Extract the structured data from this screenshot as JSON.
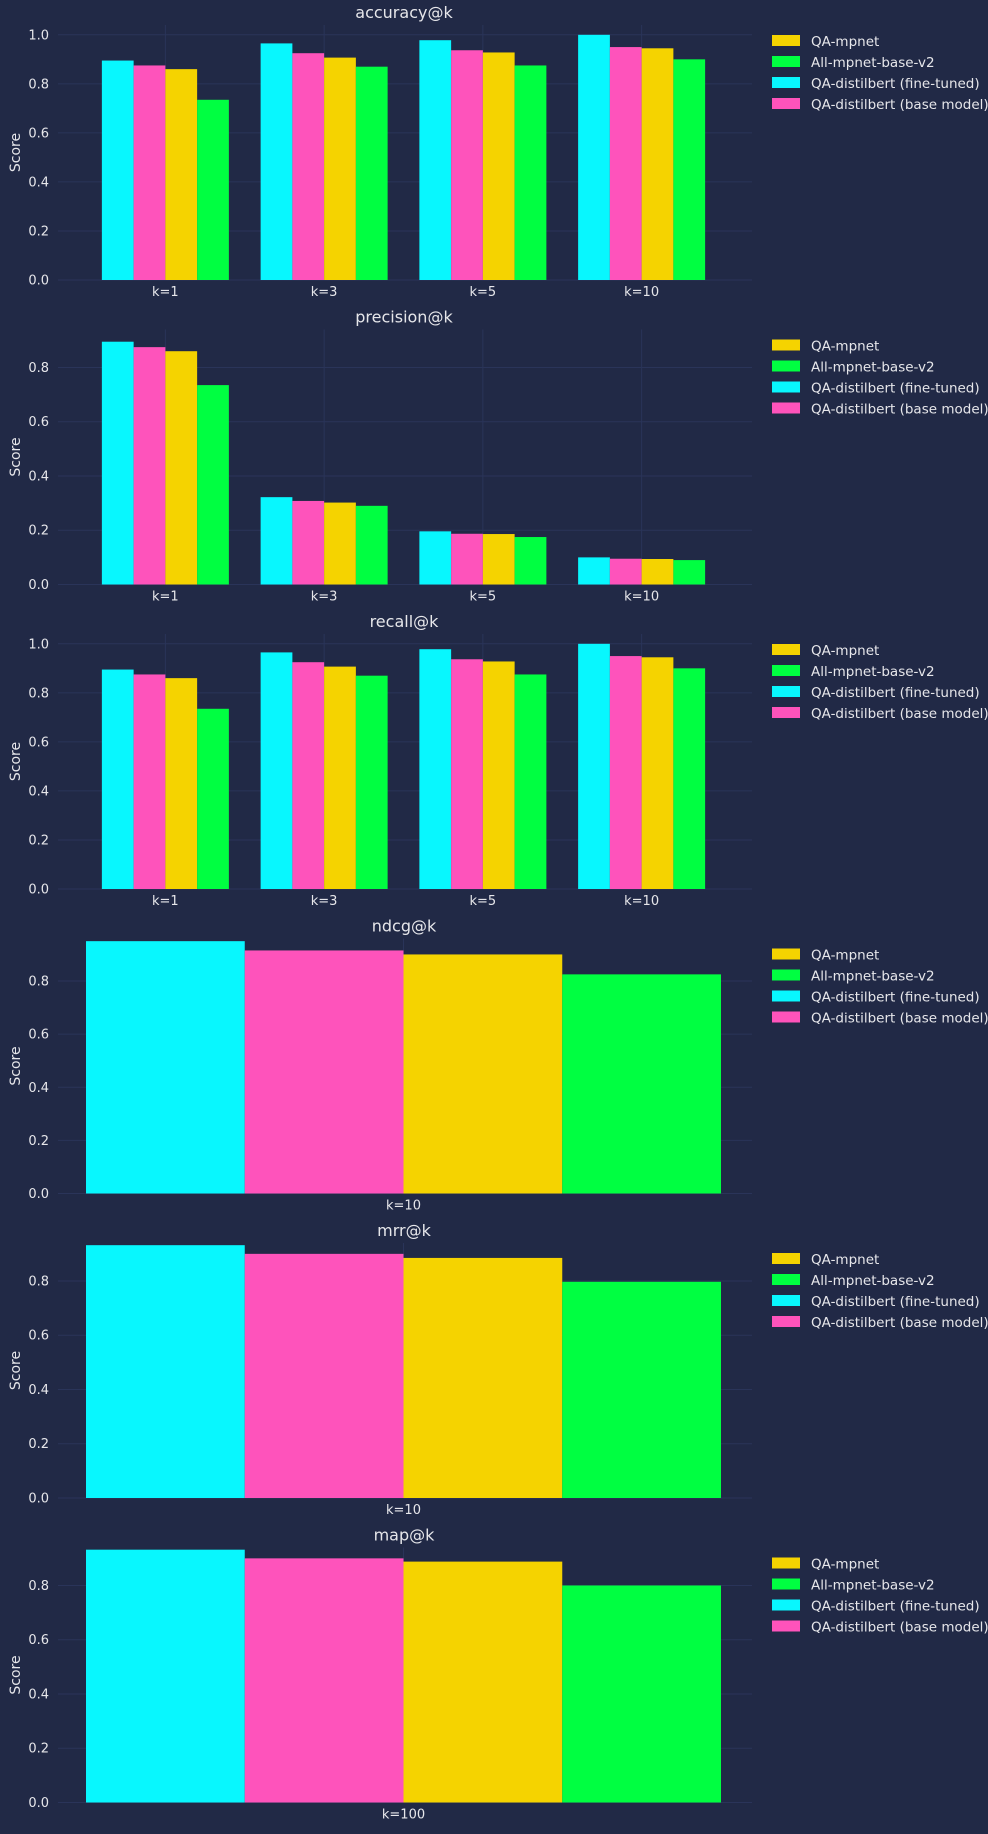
{
  "colors": {
    "background": "#212946",
    "grid": "#2A3459",
    "text": "#E6E6EA",
    "series": {
      "QA-mpnet": "#F5D300",
      "All-mpnet-base-v2": "#00FF41",
      "QA-distilbert (fine-tuned)": "#08F7FE",
      "QA-distilbert (base model)": "#FE53BB"
    }
  },
  "legend": {
    "placement": "outside-right",
    "entries": [
      "QA-mpnet",
      "All-mpnet-base-v2",
      "QA-distilbert (fine-tuned)",
      "QA-distilbert (base model)"
    ]
  },
  "chart_data": [
    {
      "type": "bar",
      "title": "accuracy@k",
      "ylabel": "Score",
      "ylim": [
        0,
        1.04
      ],
      "yticks": [
        0.0,
        0.2,
        0.4,
        0.6,
        0.8,
        1.0
      ],
      "tick_format": "0.0",
      "grid": true,
      "categories": [
        "k=1",
        "k=3",
        "k=5",
        "k=10"
      ],
      "series": [
        {
          "name": "QA-distilbert (fine-tuned)",
          "values": [
            0.895,
            0.965,
            0.978,
            1.0
          ]
        },
        {
          "name": "QA-distilbert (base model)",
          "values": [
            0.875,
            0.925,
            0.937,
            0.95
          ]
        },
        {
          "name": "QA-mpnet",
          "values": [
            0.86,
            0.907,
            0.928,
            0.945
          ]
        },
        {
          "name": "All-mpnet-base-v2",
          "values": [
            0.735,
            0.87,
            0.875,
            0.9
          ]
        }
      ]
    },
    {
      "type": "bar",
      "title": "precision@k",
      "ylabel": "Score",
      "ylim": [
        0,
        0.94
      ],
      "yticks": [
        0.0,
        0.2,
        0.4,
        0.6,
        0.8
      ],
      "tick_format": "0.0",
      "grid": true,
      "categories": [
        "k=1",
        "k=3",
        "k=5",
        "k=10"
      ],
      "series": [
        {
          "name": "QA-distilbert (fine-tuned)",
          "values": [
            0.895,
            0.322,
            0.196,
            0.1
          ]
        },
        {
          "name": "QA-distilbert (base model)",
          "values": [
            0.875,
            0.308,
            0.187,
            0.095
          ]
        },
        {
          "name": "QA-mpnet",
          "values": [
            0.86,
            0.302,
            0.186,
            0.094
          ]
        },
        {
          "name": "All-mpnet-base-v2",
          "values": [
            0.735,
            0.29,
            0.175,
            0.09
          ]
        }
      ]
    },
    {
      "type": "bar",
      "title": "recall@k",
      "ylabel": "Score",
      "ylim": [
        0,
        1.04
      ],
      "yticks": [
        0.0,
        0.2,
        0.4,
        0.6,
        0.8,
        1.0
      ],
      "tick_format": "0.0",
      "grid": true,
      "categories": [
        "k=1",
        "k=3",
        "k=5",
        "k=10"
      ],
      "series": [
        {
          "name": "QA-distilbert (fine-tuned)",
          "values": [
            0.895,
            0.965,
            0.978,
            1.0
          ]
        },
        {
          "name": "QA-distilbert (base model)",
          "values": [
            0.875,
            0.925,
            0.937,
            0.95
          ]
        },
        {
          "name": "QA-mpnet",
          "values": [
            0.86,
            0.907,
            0.928,
            0.945
          ]
        },
        {
          "name": "All-mpnet-base-v2",
          "values": [
            0.735,
            0.87,
            0.875,
            0.9
          ]
        }
      ]
    },
    {
      "type": "bar",
      "title": "ndcg@k",
      "ylabel": "Score",
      "ylim": [
        0,
        0.96
      ],
      "yticks": [
        0.0,
        0.2,
        0.4,
        0.6,
        0.8
      ],
      "tick_format": "0.0",
      "grid": true,
      "categories": [
        "k=10"
      ],
      "series": [
        {
          "name": "QA-distilbert (fine-tuned)",
          "values": [
            0.95
          ]
        },
        {
          "name": "QA-distilbert (base model)",
          "values": [
            0.915
          ]
        },
        {
          "name": "QA-mpnet",
          "values": [
            0.9
          ]
        },
        {
          "name": "All-mpnet-base-v2",
          "values": [
            0.825
          ]
        }
      ]
    },
    {
      "type": "bar",
      "title": "mrr@k",
      "ylabel": "Score",
      "ylim": [
        0,
        0.94
      ],
      "yticks": [
        0.0,
        0.2,
        0.4,
        0.6,
        0.8
      ],
      "tick_format": "0.0",
      "grid": true,
      "categories": [
        "k=10"
      ],
      "series": [
        {
          "name": "QA-distilbert (fine-tuned)",
          "values": [
            0.932
          ]
        },
        {
          "name": "QA-distilbert (base model)",
          "values": [
            0.9
          ]
        },
        {
          "name": "QA-mpnet",
          "values": [
            0.885
          ]
        },
        {
          "name": "All-mpnet-base-v2",
          "values": [
            0.797
          ]
        }
      ]
    },
    {
      "type": "bar",
      "title": "map@k",
      "ylabel": "Score",
      "ylim": [
        0,
        0.94
      ],
      "yticks": [
        0.0,
        0.2,
        0.4,
        0.6,
        0.8
      ],
      "tick_format": "0.0",
      "grid": true,
      "categories": [
        "k=100"
      ],
      "series": [
        {
          "name": "QA-distilbert (fine-tuned)",
          "values": [
            0.932
          ]
        },
        {
          "name": "QA-distilbert (base model)",
          "values": [
            0.9
          ]
        },
        {
          "name": "QA-mpnet",
          "values": [
            0.888
          ]
        },
        {
          "name": "All-mpnet-base-v2",
          "values": [
            0.8
          ]
        }
      ]
    }
  ]
}
